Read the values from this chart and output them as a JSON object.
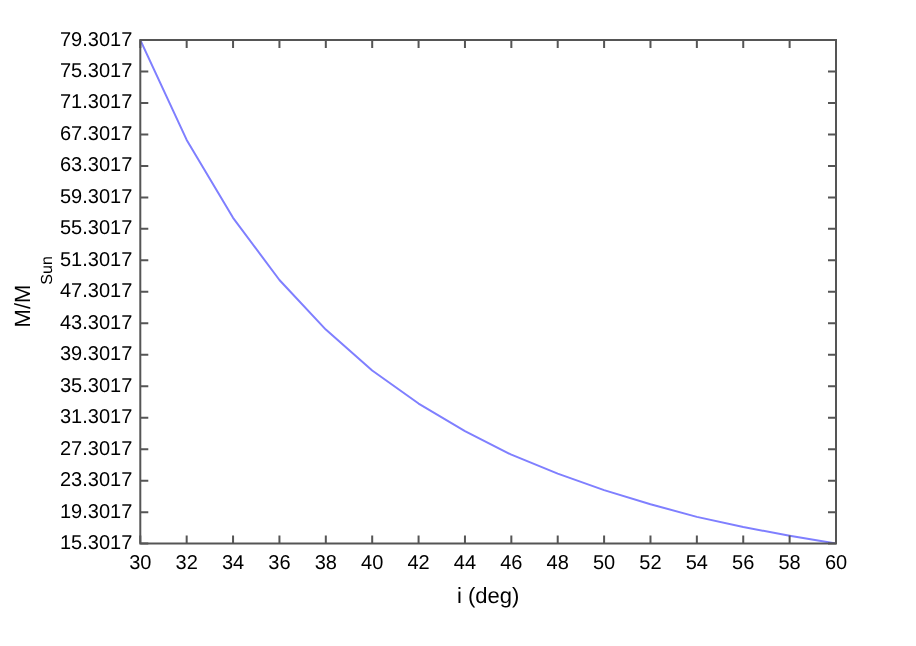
{
  "chart_data": {
    "type": "line",
    "xlabel": "i (deg)",
    "ylabel": "M/M$_{Sun}$",
    "x": [
      30,
      32,
      34,
      36,
      38,
      40,
      42,
      44,
      46,
      48,
      50,
      52,
      54,
      56,
      58,
      60
    ],
    "series": [
      {
        "color": "#7f7fff",
        "values": [
          79.3,
          66.6,
          56.7,
          48.8,
          42.5,
          37.3,
          33.1,
          29.6,
          26.6,
          24.2,
          22.1,
          20.3,
          18.7,
          17.4,
          16.3,
          15.31
        ]
      }
    ],
    "xlim": [
      30,
      60
    ],
    "xticks": [
      30,
      32,
      34,
      36,
      38,
      40,
      42,
      44,
      46,
      48,
      50,
      52,
      54,
      56,
      58,
      60
    ],
    "ylim": [
      15.3017,
      79.3017
    ],
    "yticks": [
      15.3017,
      19.3017,
      23.3017,
      27.3017,
      31.3017,
      35.3017,
      39.3017,
      43.3017,
      47.3017,
      51.3017,
      55.3017,
      59.3017,
      63.3017,
      67.3017,
      71.3017,
      75.3017,
      79.3017
    ],
    "marker": "none",
    "line_style": "solid"
  }
}
